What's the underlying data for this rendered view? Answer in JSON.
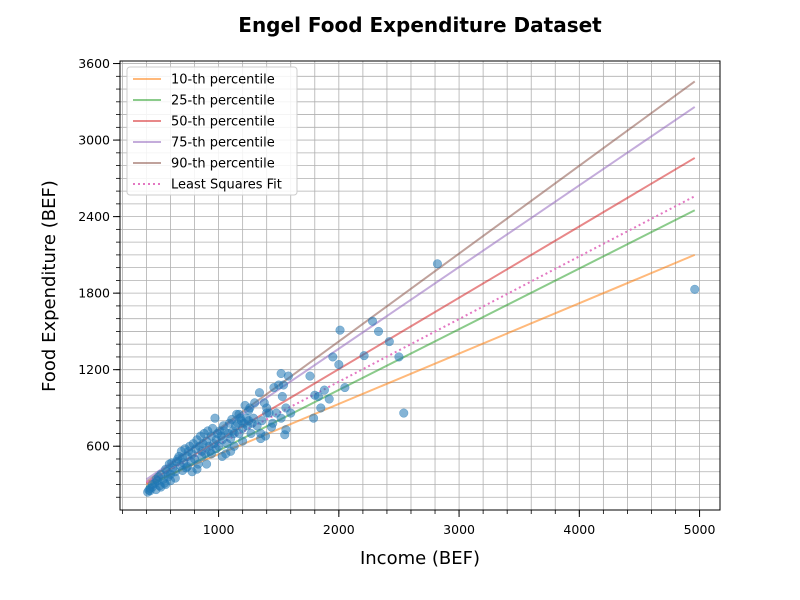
{
  "chart_data": {
    "type": "scatter",
    "title": "Engel Food Expenditure Dataset",
    "xlabel": "Income (BEF)",
    "ylabel": "Food Expenditure (BEF)",
    "xlim": [
      180,
      5170
    ],
    "ylim": [
      100,
      3620
    ],
    "x_ticks": [
      1000,
      2000,
      3000,
      4000,
      5000
    ],
    "y_ticks": [
      600,
      1200,
      1800,
      2400,
      3000,
      3600
    ],
    "grid": true,
    "legend_position": "top-left",
    "scatter": {
      "color": "#1f77b4",
      "points": [
        [
          420,
          255
        ],
        [
          430,
          270
        ],
        [
          450,
          300
        ],
        [
          470,
          310
        ],
        [
          480,
          260
        ],
        [
          490,
          330
        ],
        [
          500,
          360
        ],
        [
          510,
          290
        ],
        [
          520,
          380
        ],
        [
          540,
          340
        ],
        [
          550,
          310
        ],
        [
          560,
          420
        ],
        [
          570,
          400
        ],
        [
          580,
          360
        ],
        [
          590,
          460
        ],
        [
          600,
          380
        ],
        [
          610,
          470
        ],
        [
          620,
          430
        ],
        [
          640,
          400
        ],
        [
          650,
          480
        ],
        [
          660,
          500
        ],
        [
          670,
          520
        ],
        [
          680,
          450
        ],
        [
          690,
          560
        ],
        [
          700,
          510
        ],
        [
          710,
          470
        ],
        [
          720,
          580
        ],
        [
          730,
          430
        ],
        [
          740,
          520
        ],
        [
          750,
          560
        ],
        [
          760,
          600
        ],
        [
          770,
          480
        ],
        [
          780,
          540
        ],
        [
          790,
          620
        ],
        [
          800,
          500
        ],
        [
          810,
          580
        ],
        [
          820,
          650
        ],
        [
          830,
          460
        ],
        [
          840,
          600
        ],
        [
          850,
          680
        ],
        [
          860,
          560
        ],
        [
          870,
          620
        ],
        [
          880,
          700
        ],
        [
          890,
          540
        ],
        [
          900,
          640
        ],
        [
          910,
          720
        ],
        [
          920,
          600
        ],
        [
          930,
          560
        ],
        [
          940,
          680
        ],
        [
          950,
          740
        ],
        [
          960,
          620
        ],
        [
          970,
          820
        ],
        [
          980,
          650
        ],
        [
          990,
          700
        ],
        [
          1000,
          600
        ],
        [
          1010,
          720
        ],
        [
          1020,
          680
        ],
        [
          1030,
          650
        ],
        [
          1040,
          760
        ],
        [
          1050,
          720
        ],
        [
          1060,
          540
        ],
        [
          1070,
          620
        ],
        [
          1080,
          700
        ],
        [
          1090,
          780
        ],
        [
          1100,
          660
        ],
        [
          1110,
          810
        ],
        [
          1120,
          720
        ],
        [
          1130,
          600
        ],
        [
          1140,
          760
        ],
        [
          1150,
          850
        ],
        [
          1160,
          780
        ],
        [
          1170,
          700
        ],
        [
          1180,
          820
        ],
        [
          1190,
          800
        ],
        [
          1200,
          740
        ],
        [
          1210,
          780
        ],
        [
          1220,
          920
        ],
        [
          1230,
          820
        ],
        [
          1240,
          760
        ],
        [
          1250,
          800
        ],
        [
          1260,
          900
        ],
        [
          1270,
          700
        ],
        [
          1280,
          780
        ],
        [
          1290,
          820
        ],
        [
          1300,
          940
        ],
        [
          1320,
          760
        ],
        [
          1340,
          1020
        ],
        [
          1350,
          660
        ],
        [
          1360,
          800
        ],
        [
          1380,
          940
        ],
        [
          1390,
          680
        ],
        [
          1400,
          900
        ],
        [
          1420,
          860
        ],
        [
          1440,
          750
        ],
        [
          1460,
          1060
        ],
        [
          1480,
          860
        ],
        [
          1500,
          1080
        ],
        [
          1520,
          820
        ],
        [
          1530,
          990
        ],
        [
          1540,
          1080
        ],
        [
          1560,
          900
        ],
        [
          1580,
          1150
        ],
        [
          1600,
          860
        ],
        [
          1520,
          1170
        ],
        [
          1550,
          690
        ],
        [
          1560,
          730
        ],
        [
          1760,
          1150
        ],
        [
          1790,
          820
        ],
        [
          1800,
          1000
        ],
        [
          1830,
          990
        ],
        [
          1850,
          900
        ],
        [
          1880,
          1040
        ],
        [
          1920,
          970
        ],
        [
          1950,
          1300
        ],
        [
          2000,
          1240
        ],
        [
          2010,
          1510
        ],
        [
          2050,
          1060
        ],
        [
          2210,
          1310
        ],
        [
          2280,
          1580
        ],
        [
          2330,
          1500
        ],
        [
          2420,
          1420
        ],
        [
          2500,
          1300
        ],
        [
          2540,
          860
        ],
        [
          2820,
          2030
        ],
        [
          4960,
          1830
        ],
        [
          1350,
          700
        ],
        [
          1400,
          860
        ],
        [
          1450,
          780
        ],
        [
          1250,
          880
        ],
        [
          1170,
          850
        ],
        [
          900,
          460
        ],
        [
          860,
          520
        ],
        [
          820,
          420
        ],
        [
          780,
          400
        ],
        [
          740,
          440
        ],
        [
          700,
          410
        ],
        [
          640,
          350
        ],
        [
          600,
          330
        ],
        [
          560,
          300
        ],
        [
          520,
          280
        ],
        [
          480,
          340
        ],
        [
          450,
          280
        ],
        [
          430,
          250
        ],
        [
          410,
          240
        ],
        [
          1030,
          520
        ],
        [
          1100,
          560
        ],
        [
          940,
          540
        ],
        [
          980,
          580
        ],
        [
          1200,
          640
        ],
        [
          1130,
          700
        ]
      ]
    },
    "series": [
      {
        "name": "10-th percentile",
        "color": "#ff7f0e",
        "style": "solid",
        "x": [
          400,
          4960
        ],
        "y": [
          300,
          2100
        ]
      },
      {
        "name": "25-th percentile",
        "color": "#2ca02c",
        "style": "solid",
        "x": [
          400,
          4960
        ],
        "y": [
          280,
          2450
        ]
      },
      {
        "name": "50-th percentile",
        "color": "#d62728",
        "style": "solid",
        "x": [
          400,
          4960
        ],
        "y": [
          310,
          2860
        ]
      },
      {
        "name": "75-th percentile",
        "color": "#9467bd",
        "style": "solid",
        "x": [
          400,
          4960
        ],
        "y": [
          340,
          3260
        ]
      },
      {
        "name": "90-th percentile",
        "color": "#8c564b",
        "style": "solid",
        "x": [
          400,
          4960
        ],
        "y": [
          320,
          3460
        ]
      },
      {
        "name": "Least Squares Fit",
        "color": "#e377c2",
        "style": "dotted",
        "x": [
          400,
          4960
        ],
        "y": [
          320,
          2560
        ]
      }
    ]
  }
}
